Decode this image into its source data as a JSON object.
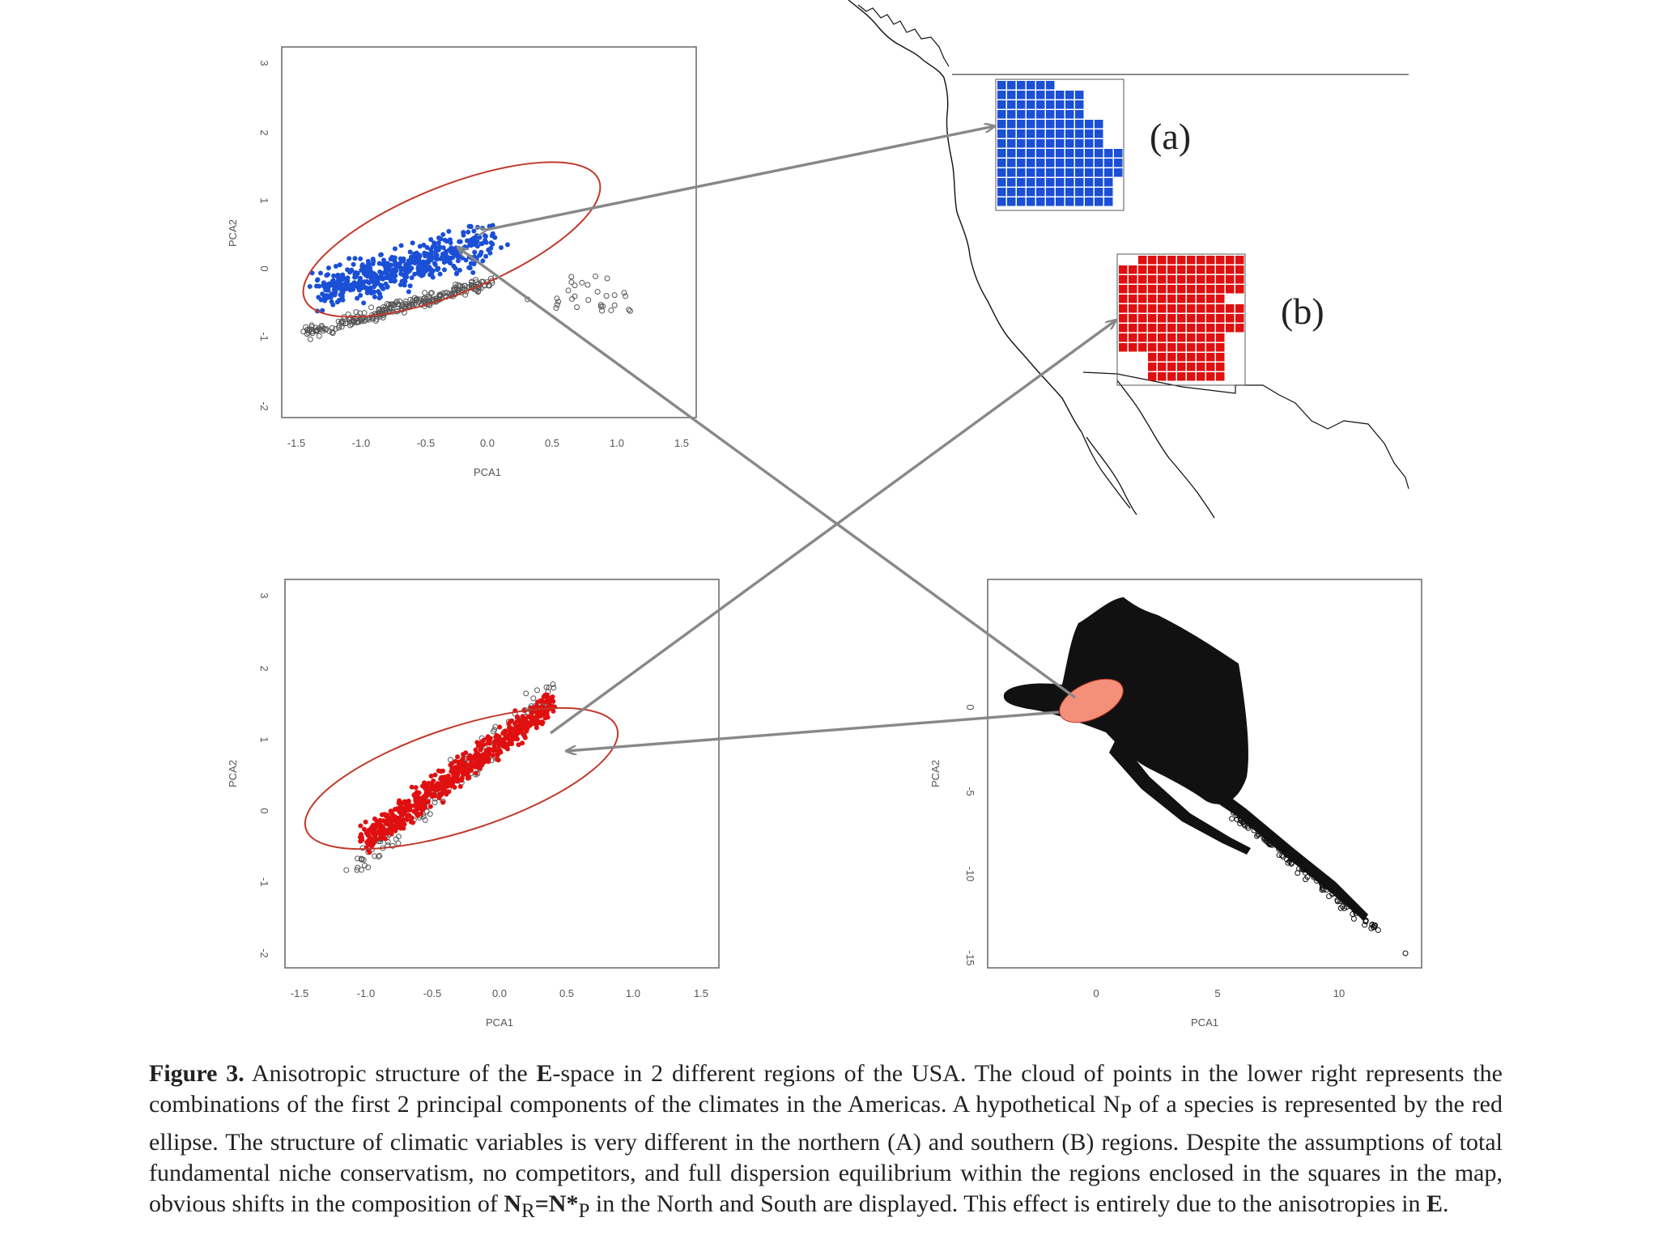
{
  "figure": {
    "panels": [
      {
        "id": "top-left",
        "xlabel": "PCA1",
        "ylabel": "PCA2",
        "xticks": [
          "-1.5",
          "-1.0",
          "-0.5",
          "0.0",
          "0.5",
          "1.0",
          "1.5"
        ],
        "yticks": [
          "-2",
          "-1",
          "0",
          "1",
          "2",
          "3"
        ]
      },
      {
        "id": "bottom-left",
        "xlabel": "PCA1",
        "ylabel": "PCA2",
        "xticks": [
          "-1.5",
          "-1.0",
          "-0.5",
          "0.0",
          "0.5",
          "1.0",
          "1.5"
        ],
        "yticks": [
          "-2",
          "-1",
          "0",
          "1",
          "2",
          "3"
        ]
      },
      {
        "id": "bottom-right",
        "xlabel": "PCA1",
        "ylabel": "PCA2",
        "xticks": [
          "0",
          "5",
          "10"
        ],
        "yticks": [
          "-15",
          "-10",
          "-5",
          "0"
        ]
      }
    ],
    "map_labels": {
      "a": "(a)",
      "b": "(b)"
    },
    "colors": {
      "north": "#1a4fd6",
      "south": "#e01010",
      "ellipse": "#c0392b",
      "np_fill": "#f4907a",
      "arrow": "#888888",
      "cloud": "#111111"
    }
  },
  "caption": {
    "label": "Figure 3.",
    "p1": " Anisotropic structure of the ",
    "E1": "E",
    "p2": "-space in 2 different regions of the USA. The cloud of points in the lower right represents the combinations of the first 2 principal components of the climates in the Americas. A hypothetical N",
    "sub1": "P",
    "p3": " of a species is represented by the red ellipse. The structure of climatic variables is very different in the northern (A) and southern (B) regions. Despite the assumptions of total fundamental niche conservatism, no competitors, and full dispersion equilibrium within the regions enclosed in the squares in the map, obvious shifts in the composition of ",
    "NR": "N",
    "subR": "R",
    "eq": "=N*",
    "subP2": "P",
    "p4": " in the North and South are displayed. This effect is entirely due to the anisotropies in ",
    "E2": "E",
    "p5": "."
  }
}
